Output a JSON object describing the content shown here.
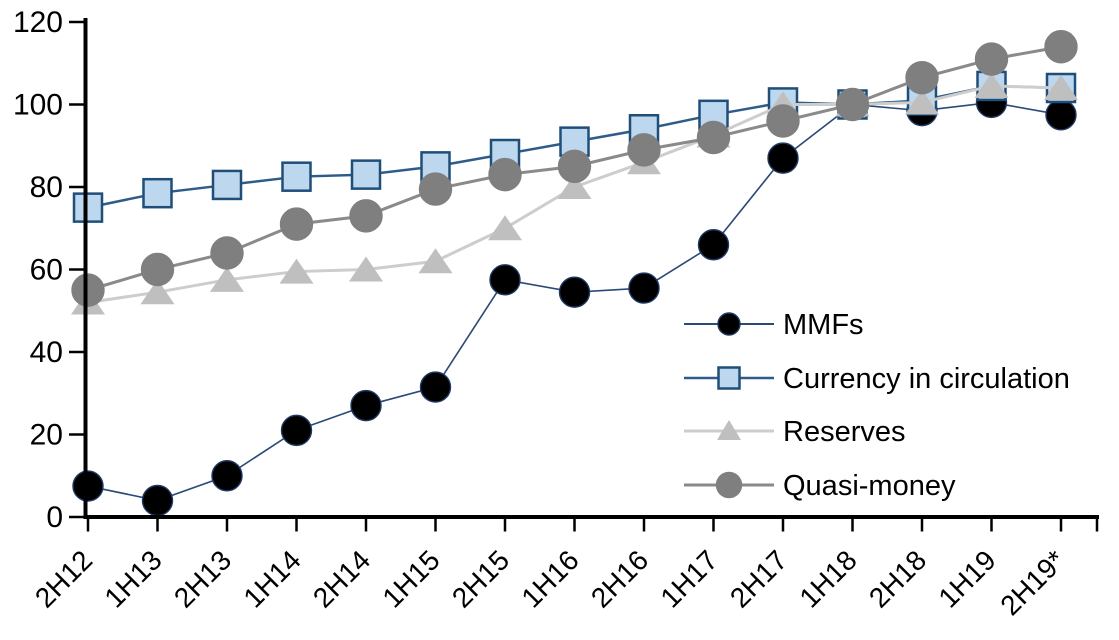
{
  "chart_data": {
    "type": "line",
    "title": "",
    "xlabel": "",
    "ylabel": "",
    "categories": [
      "2H12",
      "1H13",
      "2H13",
      "1H14",
      "2H14",
      "1H15",
      "2H15",
      "1H16",
      "2H16",
      "1H17",
      "2H17",
      "1H18",
      "2H18",
      "1H19",
      "2H19*"
    ],
    "series": [
      {
        "name": "MMFs",
        "marker": "circle",
        "marker_fill": "#000000",
        "marker_stroke": "#1F3864",
        "line_color": "#2A4A77",
        "line_width": 1.6,
        "values": [
          7.5,
          4,
          10,
          21,
          27,
          31.5,
          57.5,
          54.5,
          55.5,
          66,
          87,
          100,
          98.5,
          100.5,
          97.5
        ]
      },
      {
        "name": "Currency in circulation",
        "marker": "square",
        "marker_fill": "#BDD7EE",
        "marker_stroke": "#1F4E79",
        "line_color": "#2E5C8A",
        "line_width": 2.5,
        "values": [
          75,
          78.5,
          80.5,
          82.5,
          83,
          85,
          88,
          91,
          94,
          97.5,
          100.5,
          100,
          101,
          104.5,
          104
        ]
      },
      {
        "name": "Reserves",
        "marker": "triangle",
        "marker_fill": "#BFBFBF",
        "marker_stroke": "#BFBFBF",
        "line_color": "#CDCDCD",
        "line_width": 3,
        "values": [
          52,
          54.5,
          57.5,
          59.5,
          60,
          62,
          70,
          80,
          86,
          92.5,
          100,
          100,
          100.5,
          104.5,
          104
        ]
      },
      {
        "name": "Quasi-money",
        "marker": "circle",
        "marker_fill": "#7F7F7F",
        "marker_stroke": "#7F7F7F",
        "line_color": "#8A8A8A",
        "line_width": 3,
        "values": [
          55,
          60,
          64,
          71,
          73,
          79.5,
          83,
          85,
          89,
          92,
          96,
          100,
          106.5,
          111,
          114
        ]
      }
    ],
    "ylim": [
      0,
      120
    ],
    "ytick_step": 20,
    "ytick_labels": [
      "0",
      "20",
      "40",
      "60",
      "80",
      "100",
      "120"
    ],
    "grid": "off",
    "legend_position": "inside-right",
    "axis_color": "#000000"
  }
}
